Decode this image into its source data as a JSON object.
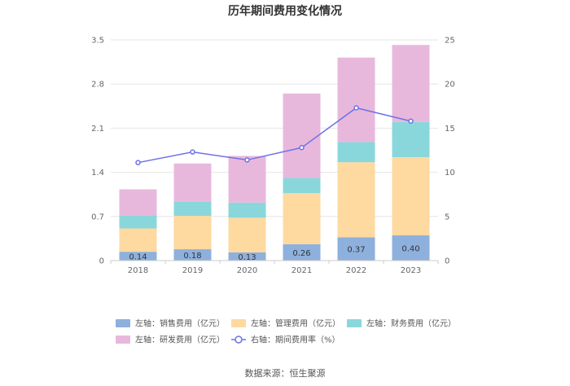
{
  "chart_data": {
    "type": "bar",
    "title": "历年期间费用变化情况",
    "categories": [
      "2018",
      "2019",
      "2020",
      "2021",
      "2022",
      "2023"
    ],
    "left_axis": {
      "ylim": [
        0,
        3.5
      ],
      "ticks": [
        "0",
        "0.7",
        "1.4",
        "2.1",
        "2.8",
        "3.5"
      ]
    },
    "right_axis": {
      "ylim": [
        0,
        25
      ],
      "ticks": [
        "0",
        "5",
        "10",
        "15",
        "20",
        "25"
      ]
    },
    "series": [
      {
        "name": "左轴：销售费用（亿元）",
        "stack": true,
        "color": "#8eb0dd",
        "values": [
          0.14,
          0.18,
          0.13,
          0.26,
          0.37,
          0.4
        ],
        "value_labels": [
          "0.14",
          "0.18",
          "0.13",
          "0.26",
          "0.37",
          "0.40"
        ]
      },
      {
        "name": "左轴：管理费用（亿元）",
        "stack": true,
        "color": "#fed9a0",
        "values": [
          0.37,
          0.53,
          0.55,
          0.81,
          1.19,
          1.24
        ]
      },
      {
        "name": "左轴：财务费用（亿元）",
        "stack": true,
        "color": "#8ad7db",
        "values": [
          0.21,
          0.22,
          0.24,
          0.24,
          0.32,
          0.56
        ]
      },
      {
        "name": "左轴：研发费用（亿元）",
        "stack": true,
        "color": "#e8b8dc",
        "values": [
          0.41,
          0.61,
          0.74,
          1.34,
          1.34,
          1.22
        ]
      },
      {
        "name": "右轴：期间费用率（%）",
        "type": "line",
        "axis": "right",
        "color": "#6d72e6",
        "values": [
          11.1,
          12.3,
          11.4,
          12.8,
          17.3,
          15.8
        ]
      }
    ],
    "source": "数据来源：恒生聚源"
  }
}
